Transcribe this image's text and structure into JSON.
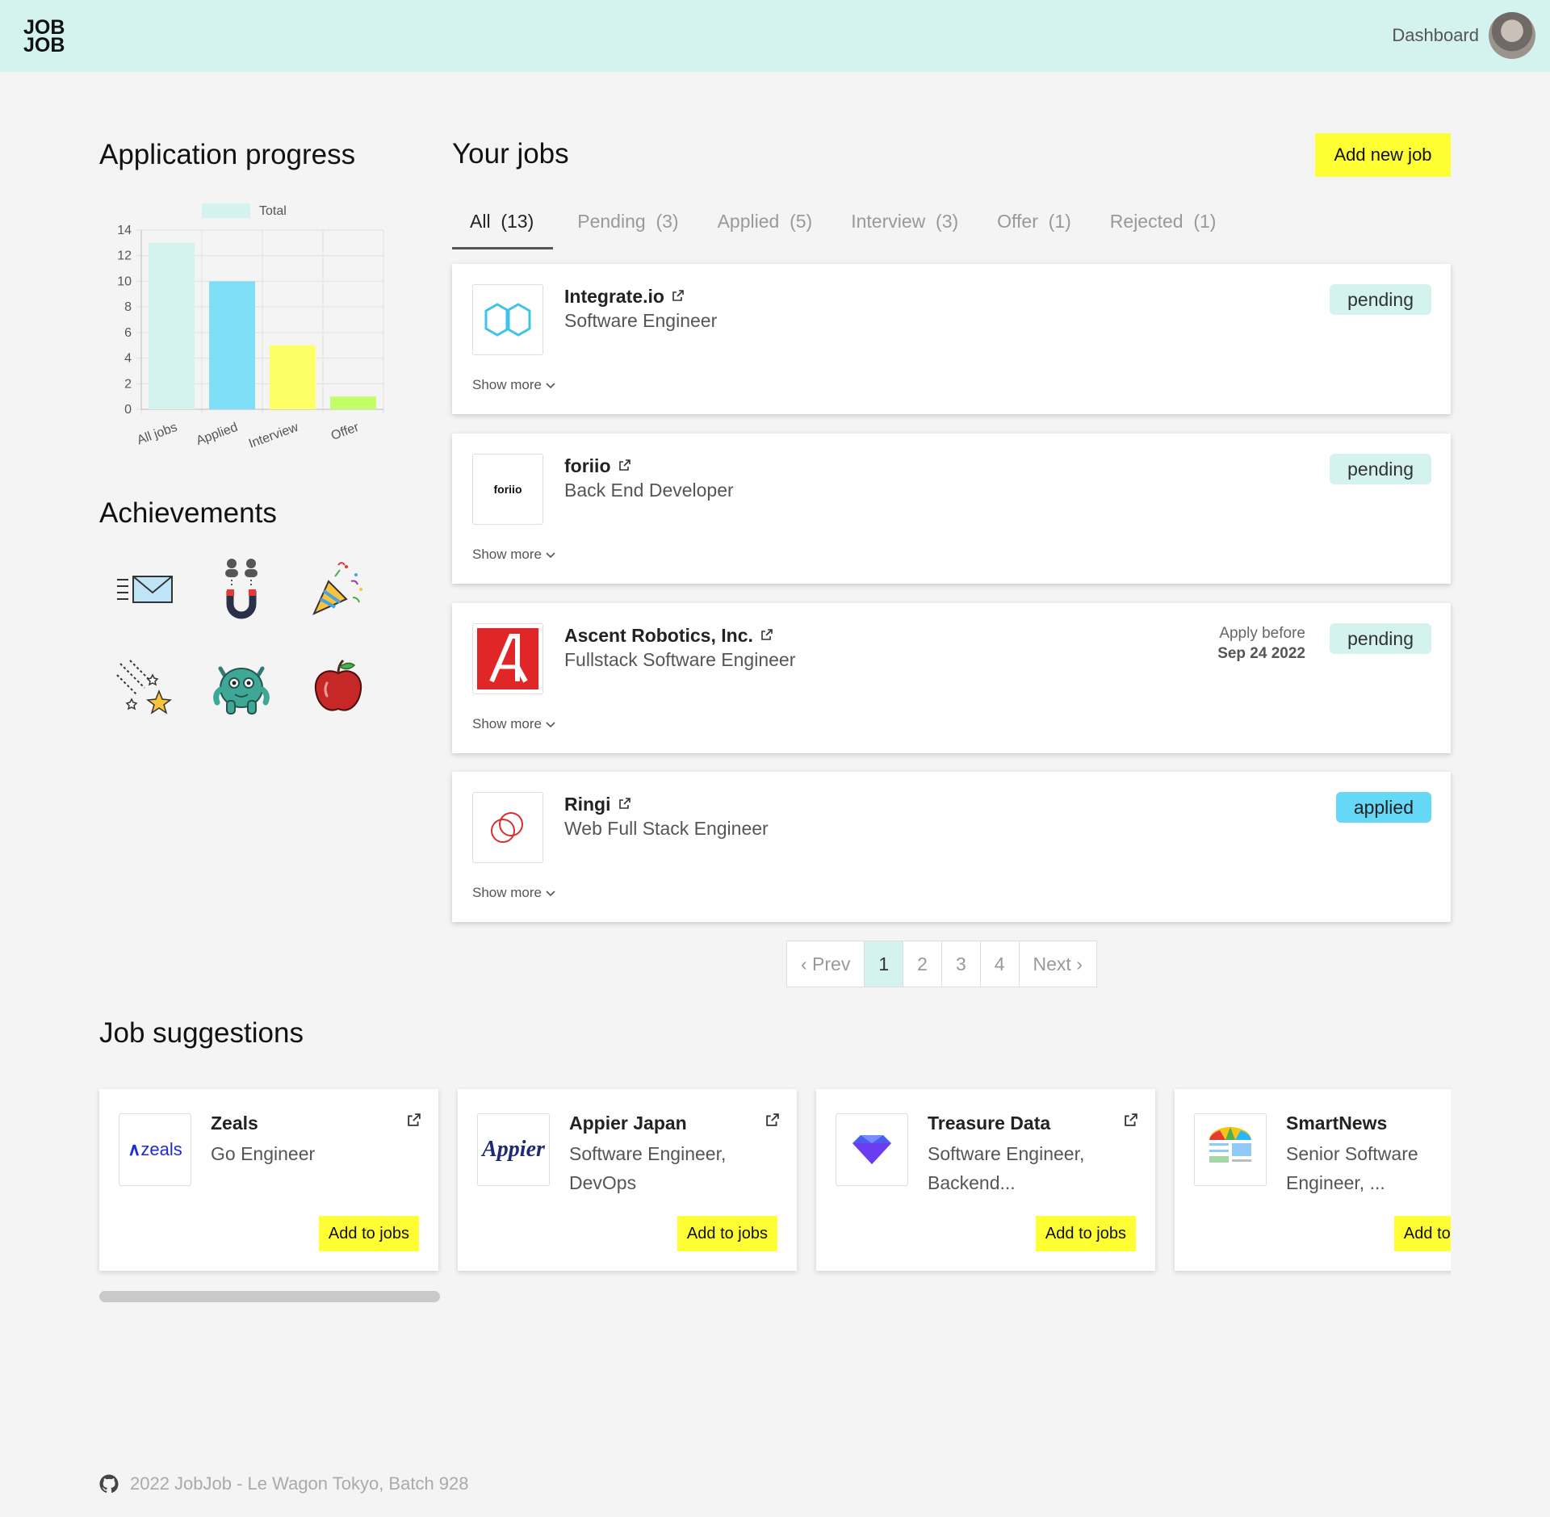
{
  "navbar": {
    "logo_line1": "JOB",
    "logo_line2": "JOB",
    "dashboard_label": "Dashboard"
  },
  "progress": {
    "title": "Application progress"
  },
  "chart_data": {
    "type": "bar",
    "categories": [
      "All jobs",
      "Applied",
      "Interview",
      "Offer"
    ],
    "series": [
      {
        "name": "Total",
        "values": [
          13,
          10,
          5,
          1
        ],
        "colors": [
          "#d4f3ee",
          "#7fdff7",
          "#ffff66",
          "#c2ff66"
        ]
      }
    ],
    "ylim": [
      0,
      14
    ],
    "yticks": [
      0,
      2,
      4,
      6,
      8,
      10,
      12,
      14
    ],
    "legend_label": "Total",
    "legend_color": "#d4f3ee",
    "legend_position": "top",
    "grid": true
  },
  "achievements": {
    "title": "Achievements",
    "icons": [
      "envelope-icon",
      "magnet-people-icon",
      "party-popper-icon",
      "shooting-stars-icon",
      "monster-icon",
      "apple-icon"
    ]
  },
  "jobs": {
    "title": "Your jobs",
    "add_button": "Add new job",
    "tabs": [
      {
        "label": "All",
        "count": "(13)"
      },
      {
        "label": "Pending",
        "count": "(3)"
      },
      {
        "label": "Applied",
        "count": "(5)"
      },
      {
        "label": "Interview",
        "count": "(3)"
      },
      {
        "label": "Offer",
        "count": "(1)"
      },
      {
        "label": "Rejected",
        "count": "(1)"
      }
    ],
    "items": [
      {
        "company": "Integrate.io",
        "role": "Software Engineer",
        "status": "pending",
        "show_more": "Show more"
      },
      {
        "company": "foriio",
        "role": "Back End Developer",
        "status": "pending",
        "show_more": "Show more",
        "logo_text": "foriio"
      },
      {
        "company": "Ascent Robotics, Inc.",
        "role": "Fullstack Software Engineer",
        "status": "pending",
        "show_more": "Show more",
        "deadline_label": "Apply before",
        "deadline_date": "Sep 24 2022"
      },
      {
        "company": "Ringi",
        "role": "Web Full Stack Engineer",
        "status": "applied",
        "show_more": "Show more"
      }
    ]
  },
  "pagination": {
    "prev": "‹ Prev",
    "pages": [
      "1",
      "2",
      "3",
      "4"
    ],
    "next": "Next ›",
    "current": "1"
  },
  "suggestions": {
    "title": "Job suggestions",
    "items": [
      {
        "company": "Zeals",
        "role": "Go Engineer",
        "button": "Add to jobs",
        "logo_text": "zeals"
      },
      {
        "company": "Appier Japan",
        "role": "Software Engineer, DevOps",
        "button": "Add to jobs",
        "logo_text": "Appier"
      },
      {
        "company": "Treasure Data",
        "role": "Software Engineer, Backend...",
        "button": "Add to jobs"
      },
      {
        "company": "SmartNews",
        "role": "Senior Software Engineer, ...",
        "button": "Add to jobs"
      }
    ]
  },
  "footer": {
    "text": "2022 JobJob - Le Wagon Tokyo, Batch 928"
  },
  "colors": {
    "navbar": "#d4f3ee",
    "accent_yellow": "#ffff33",
    "pending": "#d4f3ee",
    "applied": "#64d8f6"
  }
}
